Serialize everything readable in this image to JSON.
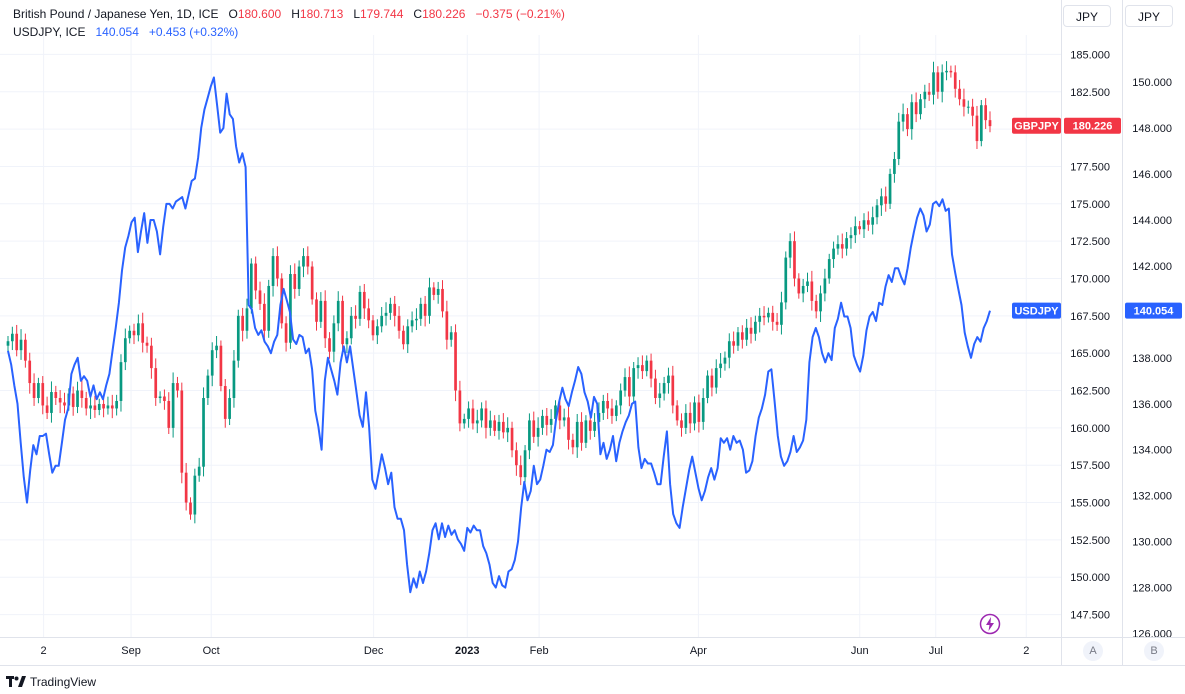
{
  "legend": {
    "main": {
      "name": "British Pound / Japanese Yen, 1D, ICE",
      "o_label": "O",
      "o": "180.600",
      "h_label": "H",
      "h": "180.713",
      "l_label": "L",
      "l": "179.744",
      "c_label": "C",
      "c": "180.226",
      "change": "−0.375 (−0.21%)"
    },
    "compare": {
      "name": "USDJPY, ICE",
      "value": "140.054",
      "change": "+0.453 (+0.32%)"
    }
  },
  "scale_buttons": [
    "JPY",
    "JPY"
  ],
  "scale_mode_buttons": [
    "A",
    "B"
  ],
  "brand": "TradingView",
  "colors": {
    "up": "#089981",
    "down": "#f23645",
    "compare": "#2962ff",
    "grid": "#f0f3fa",
    "axis_text": "#131722"
  },
  "chart_data": {
    "type": "candlestick",
    "x_labels": [
      "2",
      "Sep",
      "Oct",
      "Dec",
      "2023",
      "Feb",
      "Apr",
      "Jun",
      "Jul",
      "2"
    ],
    "left_axis": {
      "series": "GBPJPY",
      "ticks": [
        "185.000",
        "182.500",
        "180.000",
        "177.500",
        "175.000",
        "172.500",
        "170.000",
        "167.500",
        "165.000",
        "162.500",
        "160.000",
        "157.500",
        "155.000",
        "152.500",
        "150.000",
        "147.500"
      ],
      "ylim": [
        146.0,
        186.3
      ]
    },
    "right_axis": {
      "series": "USDJPY",
      "ticks": [
        "150.000",
        "148.000",
        "146.000",
        "144.000",
        "142.000",
        "140.000",
        "138.000",
        "136.000",
        "134.000",
        "132.000",
        "130.000",
        "128.000",
        "126.000"
      ],
      "ylim": [
        125.85,
        152.05
      ]
    },
    "series": [
      {
        "name": "GBPJPY",
        "type": "candles",
        "last_label": "GBPJPY",
        "last_value": "180.226",
        "last": 180.226,
        "closes": [
          165.8,
          166.3,
          165.2,
          165.9,
          164.5,
          163.0,
          162.0,
          163.0,
          161.5,
          161.0,
          162.4,
          162.0,
          161.7,
          161.5,
          162.3,
          161.4,
          162.5,
          162.0,
          161.3,
          161.5,
          161.2,
          161.6,
          161.3,
          161.5,
          161.3,
          161.8,
          164.4,
          166.0,
          166.5,
          166.2,
          167.0,
          165.7,
          165.5,
          164.0,
          162.0,
          162.1,
          161.8,
          160.0,
          163.0,
          162.5,
          157.0,
          155.0,
          154.2,
          156.8,
          157.4,
          162.0,
          163.5,
          165.2,
          165.5,
          162.8,
          160.6,
          162.0,
          164.5,
          167.5,
          166.5,
          168.0,
          171.0,
          169.2,
          168.3,
          166.5,
          169.5,
          171.5,
          170.0,
          167.0,
          165.7,
          170.3,
          169.3,
          170.8,
          171.5,
          170.8,
          168.6,
          167.1,
          168.5,
          166.0,
          165.1,
          167.0,
          168.5,
          165.6,
          166.0,
          167.5,
          167.3,
          169.1,
          168.0,
          167.2,
          166.2,
          166.8,
          167.5,
          167.7,
          168.3,
          167.5,
          166.5,
          165.6,
          166.8,
          167.2,
          167.3,
          168.3,
          167.5,
          169.4,
          168.9,
          169.3,
          167.8,
          165.9,
          166.4,
          162.5,
          160.3,
          160.6,
          161.3,
          160.3,
          160.5,
          161.3,
          160.0,
          160.5,
          159.8,
          160.4,
          159.7,
          160.0,
          158.5,
          157.5,
          156.7,
          158.5,
          160.5,
          159.4,
          160.0,
          160.8,
          160.2,
          160.6,
          161.5,
          160.5,
          160.7,
          159.2,
          158.7,
          160.4,
          159.0,
          160.5,
          159.8,
          160.4,
          161.0,
          161.8,
          161.3,
          160.8,
          161.5,
          162.5,
          163.4,
          162.1,
          164.0,
          164.2,
          163.8,
          164.5,
          163.3,
          162.0,
          162.3,
          163.0,
          163.5,
          161.5,
          160.5,
          160.0,
          161.0,
          160.3,
          161.7,
          160.4,
          162.0,
          163.5,
          162.7,
          164.0,
          164.3,
          164.7,
          165.8,
          165.5,
          166.4,
          165.9,
          166.7,
          166.3,
          167.1,
          167.5,
          167.4,
          167.7,
          167.1,
          166.9,
          168.4,
          171.4,
          172.5,
          170.0,
          169.0,
          169.5,
          169.8,
          168.5,
          167.8,
          169.0,
          170.0,
          171.3,
          172.0,
          172.3,
          172.0,
          172.7,
          172.9,
          173.5,
          173.3,
          173.9,
          173.6,
          174.1,
          174.9,
          175.5,
          175.0,
          177.0,
          178.0,
          180.5,
          181.0,
          180.0,
          181.8,
          181.0,
          182.0,
          182.5,
          182.3,
          183.8,
          182.5,
          183.8,
          183.9,
          183.8,
          182.7,
          182.0,
          181.5,
          181.5,
          180.9,
          179.2,
          181.6,
          180.6,
          180.2
        ],
        "color_up": "#089981",
        "color_down": "#f23645"
      },
      {
        "name": "USDJPY",
        "type": "line",
        "last_label": "USDJPY",
        "last_value": "140.054",
        "last": 140.054,
        "values": [
          138.3,
          137.7,
          136.8,
          136.0,
          134.3,
          132.8,
          131.7,
          133.1,
          134.2,
          133.8,
          134.6,
          134.6,
          134.7,
          133.8,
          133.0,
          133.3,
          133.3,
          134.3,
          135.3,
          135.8,
          137.3,
          137.7,
          138.0,
          137.0,
          137.2,
          137.0,
          136.3,
          136.8,
          136.2,
          136.5,
          136.2,
          136.8,
          137.3,
          138.3,
          139.3,
          140.4,
          141.8,
          142.8,
          143.3,
          143.9,
          144.1,
          142.6,
          143.5,
          144.3,
          143.0,
          144.0,
          144.0,
          143.5,
          142.5,
          143.7,
          144.7,
          144.7,
          144.5,
          144.8,
          144.9,
          145.0,
          144.5,
          145.1,
          145.7,
          145.8,
          146.7,
          148.0,
          148.8,
          149.3,
          149.8,
          150.2,
          149.0,
          147.8,
          148.0,
          149.5,
          148.6,
          148.4,
          147.2,
          146.5,
          146.9,
          146.3,
          140.3,
          140.1,
          139.3,
          139.0,
          139.2,
          138.7,
          138.5,
          138.2,
          138.7,
          139.0,
          140.3,
          141.0,
          140.5,
          140.0,
          138.8,
          138.6,
          139.0,
          138.9,
          138.2,
          138.4,
          137.5,
          135.7,
          135.0,
          134.0,
          137.0,
          138.0,
          137.5,
          137.0,
          136.4,
          137.8,
          138.5,
          137.8,
          138.5,
          137.5,
          136.5,
          135.5,
          135.0,
          136.5,
          135.0,
          132.7,
          132.3,
          133.0,
          133.8,
          133.2,
          132.5,
          133.0,
          131.5,
          131.0,
          131.0,
          130.5,
          129.0,
          127.8,
          128.4,
          128.0,
          128.7,
          128.2,
          128.7,
          129.5,
          130.5,
          130.8,
          130.1,
          130.8,
          130.2,
          130.7,
          130.3,
          130.5,
          130.1,
          129.9,
          129.6,
          130.6,
          130.4,
          130.7,
          130.5,
          130.5,
          129.8,
          129.5,
          129.0,
          128.2,
          128.0,
          128.5,
          128.1,
          128.0,
          128.7,
          128.8,
          129.2,
          130.0,
          131.5,
          132.6,
          131.8,
          132.2,
          133.3,
          132.5,
          132.7,
          133.3,
          134.0,
          133.9,
          134.2,
          135.3,
          136.1,
          136.7,
          136.2,
          135.9,
          136.5,
          137.0,
          137.6,
          137.3,
          136.5,
          136.1,
          135.4,
          136.3,
          136.0,
          133.8,
          134.3,
          133.6,
          134.0,
          134.6,
          133.5,
          134.3,
          134.8,
          135.2,
          135.5,
          136.0,
          136.1,
          134.1,
          133.2,
          133.6,
          133.4,
          133.4,
          133.0,
          132.5,
          132.5,
          133.7,
          134.8,
          132.5,
          131.2,
          130.8,
          130.6,
          131.5,
          132.3,
          133.1,
          133.7,
          133.0,
          132.3,
          131.8,
          132.2,
          132.8,
          133.2,
          132.7,
          133.2,
          134.5,
          134.3,
          134.5,
          134.0,
          134.6,
          134.3,
          134.4,
          134.0,
          133.0,
          133.1,
          133.5,
          134.6,
          135.4,
          135.8,
          136.4,
          137.4,
          137.5,
          136.1,
          134.6,
          133.7,
          133.3,
          133.5,
          133.9,
          134.6,
          133.9,
          134.1,
          134.4,
          135.3,
          137.8,
          138.9,
          139.3,
          138.9,
          138.2,
          137.8,
          138.2,
          137.9,
          139.3,
          139.7,
          140.4,
          139.8,
          139.8,
          139.3,
          138.1,
          137.7,
          137.4,
          138.1,
          139.2,
          139.8,
          140.0,
          139.6,
          140.4,
          140.3,
          141.1,
          141.6,
          141.3,
          141.9,
          141.9,
          141.5,
          141.2,
          141.9,
          142.8,
          143.5,
          144.1,
          144.5,
          144.2,
          143.5,
          143.8,
          144.7,
          144.8,
          144.6,
          144.9,
          144.4,
          144.5,
          142.5,
          141.7,
          141.0,
          140.3,
          139.1,
          138.5,
          138.0,
          138.6,
          138.9,
          138.7,
          139.3,
          139.6,
          140.05
        ]
      }
    ]
  }
}
